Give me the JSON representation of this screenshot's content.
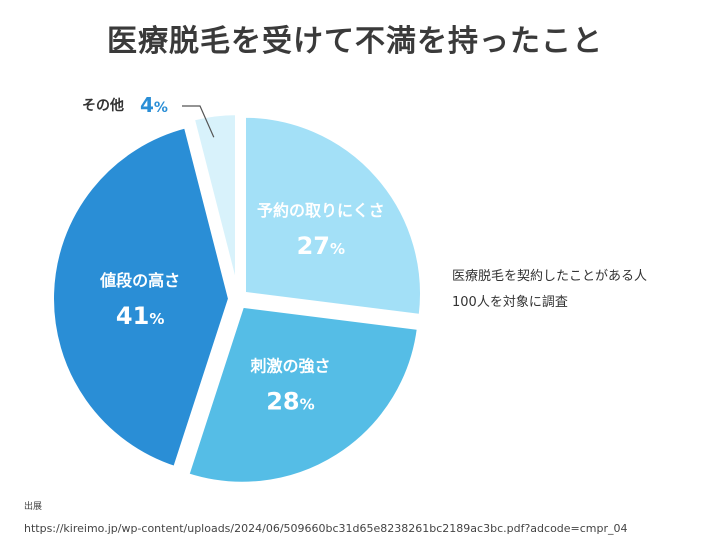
{
  "title": "医療脱毛を受けて不満を持ったこと",
  "survey_note": {
    "line1": "医療脱毛を契約したことがある人",
    "line2": "100人を対象に調査"
  },
  "source": {
    "label": "出展",
    "url": "https://kireimo.jp/wp-content/uploads/2024/06/509660bc31d65e8238261bc2189ac3bc.pdf?adcode=cmpr_04"
  },
  "chart_data": {
    "type": "pie",
    "title": "医療脱毛を受けて不満を持ったこと",
    "slices": [
      {
        "label": "予約の取りにくさ",
        "value": 27,
        "display": "27",
        "unit": "%",
        "color": "#a3e0f7",
        "text_color": "#ffffff"
      },
      {
        "label": "刺激の強さ",
        "value": 28,
        "display": "28",
        "unit": "%",
        "color": "#55bde6",
        "text_color": "#ffffff"
      },
      {
        "label": "値段の高さ",
        "value": 41,
        "display": "41",
        "unit": "%",
        "color": "#2a8ed6",
        "text_color": "#ffffff"
      },
      {
        "label": "その他",
        "value": 4,
        "display": "4",
        "unit": "%",
        "color": "#d8f2fb",
        "text_color": "#333333",
        "value_color": "#2a8ed6"
      }
    ]
  }
}
